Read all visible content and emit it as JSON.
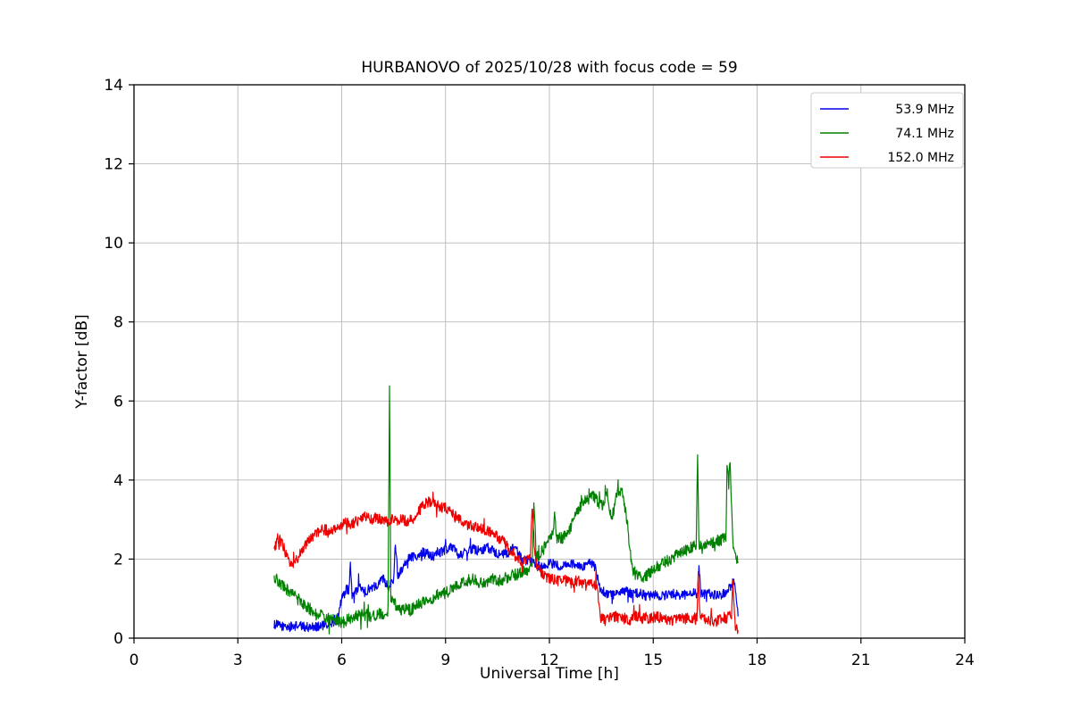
{
  "chart": {
    "title": "HURBANOVO of 2025/10/28 with focus code = 59",
    "xlabel": "Universal Time [h]",
    "ylabel": "Y-factor [dB]",
    "xlim": [
      0,
      24
    ],
    "ylim": [
      0,
      14
    ],
    "xticks": [
      0,
      3,
      6,
      9,
      12,
      15,
      18,
      21,
      24
    ],
    "yticks": [
      0,
      2,
      4,
      6,
      8,
      10,
      12,
      14
    ],
    "grid": true,
    "grid_color": "#b8b8b8",
    "spine_color": "#000000",
    "legend_position": "top-right"
  },
  "chart_data": {
    "type": "line",
    "xlabel": "Universal Time [h]",
    "ylabel": "Y-factor [dB]",
    "title": "HURBANOVO of 2025/10/28 with focus code = 59",
    "series": [
      {
        "name": "53.9 MHz",
        "color": "#0000ee",
        "noise": 0.12,
        "points": [
          [
            4.05,
            0.35
          ],
          [
            4.3,
            0.3
          ],
          [
            4.5,
            0.28
          ],
          [
            4.7,
            0.32
          ],
          [
            5.0,
            0.28
          ],
          [
            5.3,
            0.3
          ],
          [
            5.6,
            0.33
          ],
          [
            5.85,
            0.45
          ],
          [
            6.0,
            1.0
          ],
          [
            6.15,
            1.25
          ],
          [
            6.21,
            1.2
          ],
          [
            6.25,
            1.9
          ],
          [
            6.3,
            1.05
          ],
          [
            6.5,
            1.3
          ],
          [
            6.65,
            1.15
          ],
          [
            6.8,
            1.25
          ],
          [
            7.0,
            1.35
          ],
          [
            7.2,
            1.5
          ],
          [
            7.35,
            1.3
          ],
          [
            7.5,
            1.5
          ],
          [
            7.55,
            2.4
          ],
          [
            7.62,
            1.6
          ],
          [
            7.7,
            1.7
          ],
          [
            7.85,
            1.95
          ],
          [
            8.0,
            2.05
          ],
          [
            8.2,
            2.1
          ],
          [
            8.4,
            2.2
          ],
          [
            8.6,
            2.05
          ],
          [
            8.8,
            2.15
          ],
          [
            9.0,
            2.25
          ],
          [
            9.2,
            2.3
          ],
          [
            9.4,
            2.1
          ],
          [
            9.6,
            2.2
          ],
          [
            9.8,
            2.25
          ],
          [
            10.0,
            2.2
          ],
          [
            10.2,
            2.3
          ],
          [
            10.4,
            2.2
          ],
          [
            10.6,
            2.1
          ],
          [
            10.8,
            2.15
          ],
          [
            11.0,
            2.3
          ],
          [
            11.2,
            2.0
          ],
          [
            11.4,
            1.95
          ],
          [
            11.6,
            1.85
          ],
          [
            11.8,
            1.8
          ],
          [
            12.0,
            1.9
          ],
          [
            12.2,
            1.85
          ],
          [
            12.4,
            1.8
          ],
          [
            12.6,
            1.9
          ],
          [
            12.8,
            1.85
          ],
          [
            13.0,
            1.8
          ],
          [
            13.2,
            1.9
          ],
          [
            13.35,
            1.75
          ],
          [
            13.45,
            1.25
          ],
          [
            13.6,
            1.15
          ],
          [
            13.8,
            1.1
          ],
          [
            14.0,
            1.15
          ],
          [
            14.2,
            1.2
          ],
          [
            14.4,
            1.1
          ],
          [
            14.6,
            1.15
          ],
          [
            14.8,
            1.05
          ],
          [
            15.0,
            1.1
          ],
          [
            15.2,
            1.05
          ],
          [
            15.4,
            1.1
          ],
          [
            15.6,
            1.12
          ],
          [
            15.8,
            1.08
          ],
          [
            16.0,
            1.1
          ],
          [
            16.2,
            1.15
          ],
          [
            16.28,
            1.12
          ],
          [
            16.32,
            1.85
          ],
          [
            16.37,
            1.1
          ],
          [
            16.6,
            1.12
          ],
          [
            16.8,
            1.08
          ],
          [
            17.0,
            1.1
          ],
          [
            17.2,
            1.25
          ],
          [
            17.35,
            1.5
          ],
          [
            17.45,
            0.55
          ]
        ]
      },
      {
        "name": "74.1 MHz",
        "color": "#008000",
        "noise": 0.15,
        "points": [
          [
            4.05,
            1.55
          ],
          [
            4.25,
            1.35
          ],
          [
            4.45,
            1.2
          ],
          [
            4.65,
            1.05
          ],
          [
            4.85,
            0.9
          ],
          [
            5.05,
            0.75
          ],
          [
            5.25,
            0.6
          ],
          [
            5.45,
            0.55
          ],
          [
            5.65,
            0.5
          ],
          [
            5.85,
            0.45
          ],
          [
            6.05,
            0.4
          ],
          [
            6.25,
            0.5
          ],
          [
            6.45,
            0.55
          ],
          [
            6.65,
            0.6
          ],
          [
            6.85,
            0.55
          ],
          [
            7.05,
            0.6
          ],
          [
            7.25,
            0.65
          ],
          [
            7.34,
            0.7
          ],
          [
            7.38,
            6.45
          ],
          [
            7.42,
            1.0
          ],
          [
            7.55,
            0.85
          ],
          [
            7.7,
            0.7
          ],
          [
            7.85,
            0.75
          ],
          [
            8.0,
            0.7
          ],
          [
            8.2,
            0.85
          ],
          [
            8.4,
            0.95
          ],
          [
            8.6,
            1.0
          ],
          [
            8.8,
            1.1
          ],
          [
            9.0,
            1.15
          ],
          [
            9.2,
            1.25
          ],
          [
            9.4,
            1.35
          ],
          [
            9.6,
            1.45
          ],
          [
            9.8,
            1.5
          ],
          [
            10.0,
            1.4
          ],
          [
            10.2,
            1.45
          ],
          [
            10.4,
            1.5
          ],
          [
            10.6,
            1.45
          ],
          [
            10.8,
            1.55
          ],
          [
            11.0,
            1.6
          ],
          [
            11.2,
            1.65
          ],
          [
            11.4,
            1.75
          ],
          [
            11.5,
            1.8
          ],
          [
            11.55,
            3.5
          ],
          [
            11.62,
            2.05
          ],
          [
            11.8,
            2.2
          ],
          [
            12.0,
            2.55
          ],
          [
            12.1,
            2.6
          ],
          [
            12.15,
            3.2
          ],
          [
            12.22,
            2.5
          ],
          [
            12.4,
            2.55
          ],
          [
            12.6,
            2.8
          ],
          [
            12.8,
            3.2
          ],
          [
            12.95,
            3.4
          ],
          [
            13.1,
            3.5
          ],
          [
            13.25,
            3.6
          ],
          [
            13.4,
            3.45
          ],
          [
            13.55,
            3.35
          ],
          [
            13.65,
            3.75
          ],
          [
            13.8,
            3.0
          ],
          [
            13.95,
            3.7
          ],
          [
            14.1,
            3.75
          ],
          [
            14.25,
            2.9
          ],
          [
            14.4,
            1.7
          ],
          [
            14.55,
            1.55
          ],
          [
            14.7,
            1.5
          ],
          [
            14.9,
            1.65
          ],
          [
            15.1,
            1.8
          ],
          [
            15.3,
            1.9
          ],
          [
            15.5,
            2.0
          ],
          [
            15.7,
            2.1
          ],
          [
            15.9,
            2.2
          ],
          [
            16.1,
            2.3
          ],
          [
            16.24,
            2.35
          ],
          [
            16.28,
            4.5
          ],
          [
            16.33,
            2.3
          ],
          [
            16.6,
            2.35
          ],
          [
            16.8,
            2.45
          ],
          [
            17.0,
            2.5
          ],
          [
            17.1,
            2.55
          ],
          [
            17.13,
            4.35
          ],
          [
            17.18,
            3.9
          ],
          [
            17.22,
            4.5
          ],
          [
            17.3,
            2.4
          ],
          [
            17.38,
            2.1
          ],
          [
            17.45,
            1.9
          ]
        ]
      },
      {
        "name": "152.0 MHz",
        "color": "#ee0000",
        "noise": 0.14,
        "points": [
          [
            4.05,
            2.2
          ],
          [
            4.15,
            2.55
          ],
          [
            4.3,
            2.35
          ],
          [
            4.45,
            1.95
          ],
          [
            4.6,
            1.8
          ],
          [
            4.75,
            2.05
          ],
          [
            4.9,
            2.3
          ],
          [
            5.05,
            2.5
          ],
          [
            5.2,
            2.6
          ],
          [
            5.35,
            2.7
          ],
          [
            5.5,
            2.75
          ],
          [
            5.65,
            2.7
          ],
          [
            5.8,
            2.75
          ],
          [
            5.95,
            2.8
          ],
          [
            6.1,
            2.95
          ],
          [
            6.25,
            2.85
          ],
          [
            6.4,
            2.95
          ],
          [
            6.55,
            3.0
          ],
          [
            6.7,
            3.1
          ],
          [
            6.85,
            3.0
          ],
          [
            7.0,
            3.05
          ],
          [
            7.15,
            3.0
          ],
          [
            7.3,
            2.95
          ],
          [
            7.45,
            3.0
          ],
          [
            7.6,
            2.95
          ],
          [
            7.75,
            3.0
          ],
          [
            7.9,
            2.95
          ],
          [
            8.05,
            3.05
          ],
          [
            8.2,
            3.2
          ],
          [
            8.35,
            3.35
          ],
          [
            8.5,
            3.45
          ],
          [
            8.65,
            3.4
          ],
          [
            8.8,
            3.35
          ],
          [
            8.95,
            3.3
          ],
          [
            9.1,
            3.25
          ],
          [
            9.25,
            3.1
          ],
          [
            9.4,
            3.0
          ],
          [
            9.55,
            2.9
          ],
          [
            9.7,
            2.85
          ],
          [
            9.85,
            2.8
          ],
          [
            10.0,
            2.8
          ],
          [
            10.15,
            2.75
          ],
          [
            10.3,
            2.65
          ],
          [
            10.45,
            2.6
          ],
          [
            10.6,
            2.5
          ],
          [
            10.75,
            2.35
          ],
          [
            10.9,
            2.2
          ],
          [
            11.05,
            2.05
          ],
          [
            11.2,
            1.9
          ],
          [
            11.35,
            1.95
          ],
          [
            11.45,
            2.0
          ],
          [
            11.5,
            3.4
          ],
          [
            11.56,
            2.4
          ],
          [
            11.62,
            1.9
          ],
          [
            11.75,
            1.7
          ],
          [
            11.9,
            1.55
          ],
          [
            12.05,
            1.5
          ],
          [
            12.2,
            1.45
          ],
          [
            12.35,
            1.5
          ],
          [
            12.5,
            1.45
          ],
          [
            12.65,
            1.4
          ],
          [
            12.8,
            1.45
          ],
          [
            12.95,
            1.4
          ],
          [
            13.1,
            1.38
          ],
          [
            13.25,
            1.35
          ],
          [
            13.38,
            1.3
          ],
          [
            13.48,
            0.5
          ],
          [
            13.6,
            0.45
          ],
          [
            13.75,
            0.5
          ],
          [
            13.9,
            0.55
          ],
          [
            14.05,
            0.5
          ],
          [
            14.2,
            0.48
          ],
          [
            14.35,
            0.45
          ],
          [
            14.5,
            0.55
          ],
          [
            14.65,
            0.5
          ],
          [
            14.8,
            0.48
          ],
          [
            14.95,
            0.5
          ],
          [
            15.1,
            0.55
          ],
          [
            15.25,
            0.5
          ],
          [
            15.4,
            0.48
          ],
          [
            15.55,
            0.45
          ],
          [
            15.7,
            0.5
          ],
          [
            15.85,
            0.48
          ],
          [
            16.0,
            0.5
          ],
          [
            16.15,
            0.52
          ],
          [
            16.26,
            0.5
          ],
          [
            16.3,
            1.7
          ],
          [
            16.35,
            0.55
          ],
          [
            16.5,
            0.5
          ],
          [
            16.6,
            0.45
          ],
          [
            16.75,
            0.42
          ],
          [
            16.9,
            0.45
          ],
          [
            17.05,
            0.48
          ],
          [
            17.2,
            0.55
          ],
          [
            17.26,
            0.6
          ],
          [
            17.3,
            1.5
          ],
          [
            17.36,
            0.35
          ],
          [
            17.45,
            0.2
          ]
        ]
      }
    ],
    "legend": [
      "53.9 MHz",
      "74.1 MHz",
      "152.0 MHz"
    ]
  }
}
